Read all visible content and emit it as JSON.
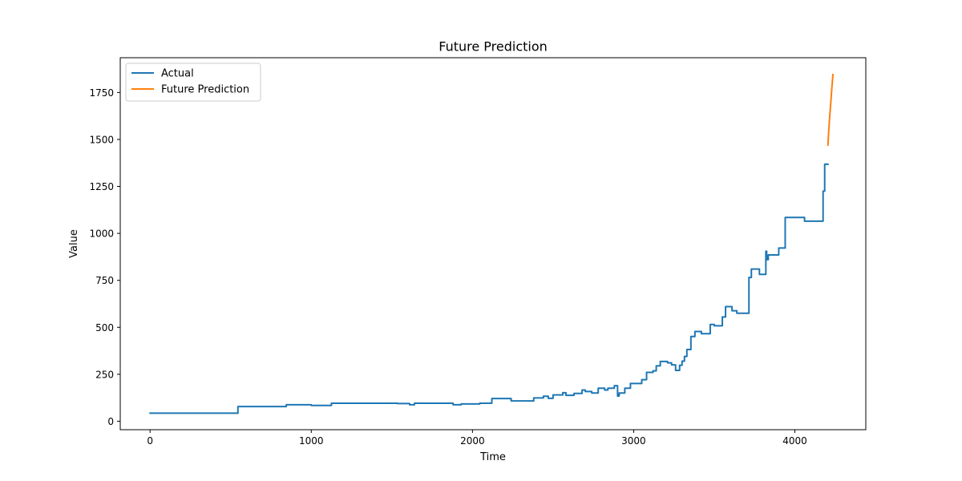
{
  "chart_data": {
    "type": "line",
    "title": "Future Prediction",
    "xlabel": "Time",
    "ylabel": "Value",
    "xlim": [
      -185,
      4440
    ],
    "ylim": [
      -45,
      1935
    ],
    "xticks": [
      0,
      1000,
      2000,
      3000,
      4000
    ],
    "yticks": [
      0,
      250,
      500,
      750,
      1000,
      1250,
      1500,
      1750
    ],
    "xtick_labels": [
      "0",
      "1000",
      "2000",
      "3000",
      "4000"
    ],
    "ytick_labels": [
      "0",
      "250",
      "500",
      "750",
      "1000",
      "1250",
      "1500",
      "1750"
    ],
    "grid": false,
    "legend_position": "top-left",
    "series": [
      {
        "name": "Actual",
        "color": "#1f77b4",
        "step": true,
        "points": [
          [
            0,
            43
          ],
          [
            545,
            43
          ],
          [
            545,
            78
          ],
          [
            845,
            78
          ],
          [
            845,
            88
          ],
          [
            1000,
            88
          ],
          [
            1000,
            84
          ],
          [
            1125,
            84
          ],
          [
            1125,
            96
          ],
          [
            1535,
            96
          ],
          [
            1535,
            94
          ],
          [
            1610,
            94
          ],
          [
            1610,
            88
          ],
          [
            1640,
            88
          ],
          [
            1640,
            96
          ],
          [
            1880,
            96
          ],
          [
            1880,
            88
          ],
          [
            1930,
            88
          ],
          [
            1930,
            92
          ],
          [
            2045,
            92
          ],
          [
            2045,
            96
          ],
          [
            2120,
            96
          ],
          [
            2120,
            121
          ],
          [
            2240,
            121
          ],
          [
            2240,
            108
          ],
          [
            2380,
            108
          ],
          [
            2380,
            124
          ],
          [
            2440,
            124
          ],
          [
            2440,
            133
          ],
          [
            2470,
            133
          ],
          [
            2470,
            122
          ],
          [
            2500,
            122
          ],
          [
            2500,
            140
          ],
          [
            2560,
            140
          ],
          [
            2560,
            152
          ],
          [
            2580,
            152
          ],
          [
            2580,
            138
          ],
          [
            2630,
            138
          ],
          [
            2630,
            148
          ],
          [
            2680,
            148
          ],
          [
            2680,
            166
          ],
          [
            2700,
            166
          ],
          [
            2700,
            158
          ],
          [
            2740,
            158
          ],
          [
            2740,
            150
          ],
          [
            2780,
            150
          ],
          [
            2780,
            176
          ],
          [
            2820,
            176
          ],
          [
            2820,
            166
          ],
          [
            2840,
            166
          ],
          [
            2840,
            176
          ],
          [
            2880,
            176
          ],
          [
            2880,
            189
          ],
          [
            2900,
            189
          ],
          [
            2900,
            134
          ],
          [
            2910,
            134
          ],
          [
            2910,
            150
          ],
          [
            2945,
            150
          ],
          [
            2945,
            176
          ],
          [
            2980,
            176
          ],
          [
            2980,
            201
          ],
          [
            3050,
            201
          ],
          [
            3050,
            221
          ],
          [
            3080,
            221
          ],
          [
            3080,
            260
          ],
          [
            3120,
            260
          ],
          [
            3120,
            268
          ],
          [
            3140,
            268
          ],
          [
            3140,
            295
          ],
          [
            3165,
            295
          ],
          [
            3165,
            318
          ],
          [
            3210,
            318
          ],
          [
            3210,
            311
          ],
          [
            3235,
            311
          ],
          [
            3235,
            300
          ],
          [
            3260,
            300
          ],
          [
            3260,
            271
          ],
          [
            3285,
            271
          ],
          [
            3285,
            298
          ],
          [
            3300,
            298
          ],
          [
            3300,
            320
          ],
          [
            3315,
            320
          ],
          [
            3315,
            345
          ],
          [
            3330,
            345
          ],
          [
            3330,
            382
          ],
          [
            3355,
            382
          ],
          [
            3355,
            451
          ],
          [
            3380,
            451
          ],
          [
            3380,
            478
          ],
          [
            3420,
            478
          ],
          [
            3420,
            466
          ],
          [
            3475,
            466
          ],
          [
            3475,
            515
          ],
          [
            3500,
            515
          ],
          [
            3500,
            508
          ],
          [
            3550,
            508
          ],
          [
            3550,
            555
          ],
          [
            3570,
            555
          ],
          [
            3570,
            610
          ],
          [
            3610,
            610
          ],
          [
            3610,
            588
          ],
          [
            3640,
            588
          ],
          [
            3640,
            575
          ],
          [
            3715,
            575
          ],
          [
            3715,
            765
          ],
          [
            3730,
            765
          ],
          [
            3730,
            810
          ],
          [
            3780,
            810
          ],
          [
            3780,
            782
          ],
          [
            3820,
            782
          ],
          [
            3820,
            905
          ],
          [
            3825,
            905
          ],
          [
            3825,
            860
          ],
          [
            3835,
            860
          ],
          [
            3835,
            885
          ],
          [
            3900,
            885
          ],
          [
            3900,
            922
          ],
          [
            3940,
            922
          ],
          [
            3940,
            1085
          ],
          [
            4060,
            1085
          ],
          [
            4060,
            1065
          ],
          [
            4175,
            1065
          ],
          [
            4175,
            1225
          ],
          [
            4185,
            1225
          ],
          [
            4185,
            1368
          ],
          [
            4205,
            1368
          ]
        ]
      },
      {
        "name": "Future Prediction",
        "color": "#ff7f0e",
        "step": false,
        "points": [
          [
            4205,
            1470
          ],
          [
            4210,
            1545
          ],
          [
            4215,
            1610
          ],
          [
            4220,
            1665
          ],
          [
            4225,
            1720
          ],
          [
            4228,
            1760
          ],
          [
            4232,
            1800
          ],
          [
            4236,
            1845
          ]
        ]
      }
    ]
  }
}
